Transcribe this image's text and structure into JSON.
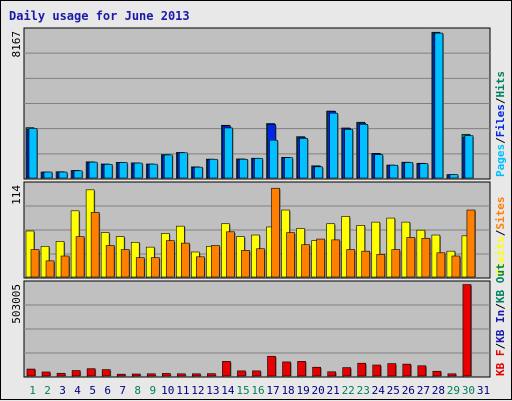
{
  "title": "Daily usage for June 2013",
  "colors": {
    "pages": "#00c0ff",
    "files": "#0026e8",
    "hits": "#00805c",
    "visits": "#ffff00",
    "sites": "#ff8000",
    "kbin": "#1a1aa8",
    "kbout": "#00805c",
    "kbf": "#e80000",
    "weekend": "#00805c",
    "weekday": "#000080",
    "plot_bg": "#c0c0c0",
    "grid": "#808080"
  },
  "panels": {
    "top": {
      "max_label": "8167",
      "legend": [
        {
          "text": "Pages",
          "color": "#00c0ff"
        },
        {
          "text": "/",
          "color": "#000000"
        },
        {
          "text": "Files",
          "color": "#0026e8"
        },
        {
          "text": "/",
          "color": "#000000"
        },
        {
          "text": "Hits",
          "color": "#00805c"
        }
      ]
    },
    "mid": {
      "max_label": "114",
      "legend": [
        {
          "text": "Visits",
          "color": "#ffff00"
        },
        {
          "text": "/",
          "color": "#000000"
        },
        {
          "text": "Sites",
          "color": "#ff8000"
        }
      ]
    },
    "bot": {
      "max_label": "503005",
      "legend": [
        {
          "text": "KB F",
          "color": "#e80000"
        },
        {
          "text": "/",
          "color": "#000000"
        },
        {
          "text": "KB In",
          "color": "#1a1aa8"
        },
        {
          "text": "/",
          "color": "#000000"
        },
        {
          "text": "KB Out",
          "color": "#00805c"
        }
      ]
    }
  },
  "chart_data": {
    "type": "bar",
    "title": "Daily usage for June 2013",
    "categories": [
      "1",
      "2",
      "3",
      "4",
      "5",
      "6",
      "7",
      "8",
      "9",
      "10",
      "11",
      "12",
      "13",
      "14",
      "15",
      "16",
      "17",
      "18",
      "19",
      "20",
      "21",
      "22",
      "23",
      "24",
      "25",
      "26",
      "27",
      "28",
      "29",
      "30",
      "31"
    ],
    "weekend_days": [
      "1",
      "2",
      "8",
      "9",
      "15",
      "16",
      "22",
      "23",
      "29",
      "30"
    ],
    "panels": [
      {
        "name": "top",
        "ylim": [
          0,
          8167
        ],
        "series": [
          {
            "name": "Hits",
            "values": [
              2800,
              330,
              350,
              420,
              900,
              780,
              870,
              840,
              780,
              1300,
              1420,
              620,
              1050,
              2930,
              1060,
              1100,
              3030,
              1150,
              2300,
              680,
              3720,
              2780,
              3100,
              1370,
              720,
              880,
              820,
              8100,
              190,
              2430,
              0
            ]
          },
          {
            "name": "Files",
            "values": [
              2700,
              330,
              330,
              410,
              880,
              760,
              860,
              830,
              760,
              1280,
              1400,
              600,
              1030,
              2900,
              1050,
              1080,
              2980,
              1130,
              2250,
              660,
              3700,
              2750,
              3050,
              1350,
              710,
              860,
              800,
              8050,
              180,
              2250,
              0
            ]
          },
          {
            "name": "Pages",
            "values": [
              2750,
              330,
              330,
              400,
              880,
              760,
              860,
              830,
              770,
              1280,
              1400,
              600,
              1040,
              2780,
              1040,
              1090,
              2100,
              1130,
              2200,
              620,
              3600,
              2700,
              2980,
              1300,
              710,
              860,
              800,
              8050,
              190,
              2350,
              0
            ]
          }
        ]
      },
      {
        "name": "mid",
        "ylim": [
          0,
          114
        ],
        "series": [
          {
            "name": "Visits",
            "values": [
              57,
              38,
              44,
              82,
              108,
              55,
              50,
              43,
              37,
              54,
              63,
              31,
              38,
              66,
              50,
              52,
              62,
              83,
              60,
              45,
              66,
              75,
              64,
              68,
              73,
              68,
              58,
              52,
              32,
              51,
              0
            ]
          },
          {
            "name": "Sites",
            "values": [
              34,
              20,
              26,
              50,
              80,
              39,
              34,
              24,
              24,
              45,
              42,
              25,
              39,
              56,
              33,
              35,
              110,
              55,
              40,
              47,
              46,
              34,
              32,
              28,
              34,
              49,
              48,
              30,
              26,
              83,
              0
            ]
          }
        ]
      },
      {
        "name": "bot",
        "ylim": [
          0,
          503005
        ],
        "series": [
          {
            "name": "KB F",
            "values": [
              38000,
              22000,
              15000,
              30000,
              40000,
              35000,
              10000,
              11000,
              12000,
              14000,
              12000,
              12000,
              13000,
              80000,
              28000,
              28000,
              108000,
              77000,
              80000,
              48000,
              23000,
              46000,
              70000,
              60000,
              68000,
              65000,
              56000,
              26000,
              12000,
              500000,
              0
            ]
          }
        ]
      }
    ]
  }
}
